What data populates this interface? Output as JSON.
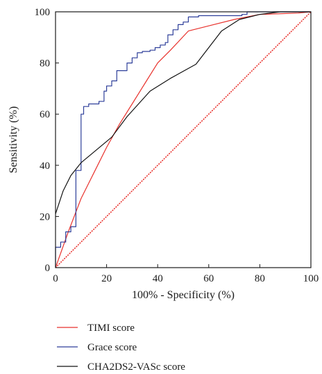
{
  "chart_data": {
    "type": "line",
    "xlabel": "100% - Specificity (%)",
    "ylabel": "Sensitivity (%)",
    "xlim": [
      0,
      100
    ],
    "ylim": [
      0,
      100
    ],
    "x_ticks": [
      0,
      20,
      40,
      60,
      80,
      100
    ],
    "y_ticks": [
      0,
      20,
      40,
      60,
      80,
      100
    ],
    "grid": false,
    "legend_position": "below",
    "series": [
      {
        "name": "TIMI score",
        "color": "#e8322d",
        "step": false,
        "points": [
          [
            0,
            0
          ],
          [
            5,
            14
          ],
          [
            10,
            27
          ],
          [
            15,
            37
          ],
          [
            20,
            47
          ],
          [
            25,
            56
          ],
          [
            30,
            64
          ],
          [
            35,
            72
          ],
          [
            40,
            80
          ],
          [
            45,
            85
          ],
          [
            52,
            92.5
          ],
          [
            60,
            94.5
          ],
          [
            70,
            97
          ],
          [
            80,
            99
          ],
          [
            95,
            99.5
          ],
          [
            100,
            100
          ]
        ]
      },
      {
        "name": "Grace score",
        "color": "#2e3f9a",
        "step": true,
        "points": [
          [
            0,
            0
          ],
          [
            0,
            8
          ],
          [
            2,
            8
          ],
          [
            2,
            10
          ],
          [
            4,
            10
          ],
          [
            4,
            14
          ],
          [
            6,
            14
          ],
          [
            6,
            16
          ],
          [
            8,
            16
          ],
          [
            8,
            38
          ],
          [
            10,
            38
          ],
          [
            10,
            60
          ],
          [
            11,
            60
          ],
          [
            11,
            63
          ],
          [
            13,
            63
          ],
          [
            13,
            64
          ],
          [
            17,
            64
          ],
          [
            17,
            65
          ],
          [
            19,
            65
          ],
          [
            19,
            69
          ],
          [
            20,
            69
          ],
          [
            20,
            71
          ],
          [
            22,
            71
          ],
          [
            22,
            73
          ],
          [
            24,
            73
          ],
          [
            24,
            77
          ],
          [
            28,
            77
          ],
          [
            28,
            80
          ],
          [
            30,
            80
          ],
          [
            30,
            82
          ],
          [
            32,
            82
          ],
          [
            32,
            84
          ],
          [
            34,
            84
          ],
          [
            34,
            84.5
          ],
          [
            37,
            84.5
          ],
          [
            37,
            85
          ],
          [
            39,
            85
          ],
          [
            39,
            86
          ],
          [
            41,
            86
          ],
          [
            41,
            87
          ],
          [
            43,
            87
          ],
          [
            43,
            88
          ],
          [
            44,
            88
          ],
          [
            44,
            91
          ],
          [
            46,
            91
          ],
          [
            46,
            93
          ],
          [
            48,
            93
          ],
          [
            48,
            95
          ],
          [
            50,
            95
          ],
          [
            50,
            96
          ],
          [
            52,
            96
          ],
          [
            52,
            98
          ],
          [
            56,
            98
          ],
          [
            56,
            98.5
          ],
          [
            73,
            98.5
          ],
          [
            73,
            99
          ],
          [
            75,
            99
          ],
          [
            75,
            100
          ],
          [
            100,
            100
          ]
        ]
      },
      {
        "name": "CHA2DS2-VASc score",
        "color": "#111111",
        "step": false,
        "points": [
          [
            0,
            21
          ],
          [
            3,
            30
          ],
          [
            6,
            36
          ],
          [
            10,
            41
          ],
          [
            16,
            46
          ],
          [
            22,
            51
          ],
          [
            28,
            59
          ],
          [
            37,
            69
          ],
          [
            45,
            74
          ],
          [
            55,
            79.5
          ],
          [
            65,
            92.5
          ],
          [
            72,
            97
          ],
          [
            80,
            99
          ],
          [
            88,
            100
          ],
          [
            100,
            100
          ]
        ]
      },
      {
        "name": "",
        "color": "#e8322d",
        "dashed": true,
        "points": [
          [
            0,
            0
          ],
          [
            100,
            100
          ]
        ]
      }
    ]
  }
}
